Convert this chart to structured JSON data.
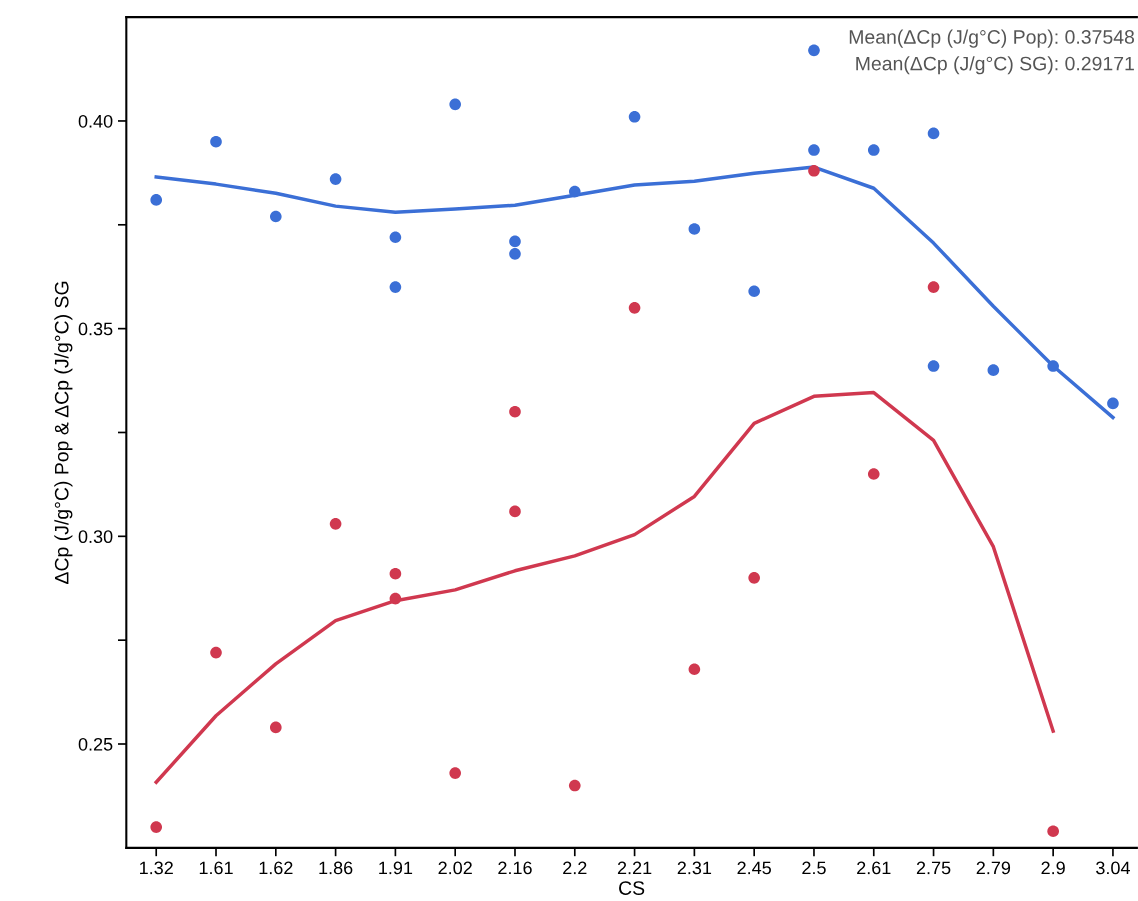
{
  "chart_data": {
    "type": "scatter",
    "categories": [
      "1.32",
      "1.61",
      "1.62",
      "1.86",
      "1.91",
      "2.02",
      "2.16",
      "2.2",
      "2.21",
      "2.31",
      "2.45",
      "2.5",
      "2.61",
      "2.75",
      "2.79",
      "2.9",
      "3.04"
    ],
    "xlabel": "CS",
    "ylabel": "ΔCp (J/g°C) Pop & ΔCp (J/g°C) SG",
    "ylim": [
      0.225,
      0.425
    ],
    "yticks": [
      {
        "value": 0.25,
        "label": "0.25"
      },
      {
        "value": 0.275,
        "label": null
      },
      {
        "value": 0.3,
        "label": "0.30"
      },
      {
        "value": 0.325,
        "label": null
      },
      {
        "value": 0.35,
        "label": "0.35"
      },
      {
        "value": 0.375,
        "label": null
      },
      {
        "value": 0.4,
        "label": "0.40"
      }
    ],
    "grid": false,
    "annotations": [
      "Mean(ΔCp (J/g°C) Pop): 0.37548",
      "Mean(ΔCp (J/g°C) SG): 0.29171"
    ],
    "series": [
      {
        "marker": "circle",
        "color": "#3b6fd6",
        "x": [
          "1.32",
          "1.61",
          "1.62",
          "1.86",
          "1.91",
          "1.91",
          "2.02",
          "2.16",
          "2.16",
          "2.2",
          "2.21",
          "2.31",
          "2.45",
          "2.5",
          "2.5",
          "2.61",
          "2.75",
          "2.75",
          "2.79",
          "2.9",
          "3.04"
        ],
        "values": [
          0.381,
          0.395,
          0.377,
          0.386,
          0.372,
          0.36,
          0.404,
          0.371,
          0.368,
          0.383,
          0.401,
          0.374,
          0.359,
          0.417,
          0.393,
          0.393,
          0.397,
          0.341,
          0.34,
          0.341,
          0.332
        ]
      },
      {
        "marker": "circle",
        "color": "#d0384f",
        "x": [
          "1.32",
          "1.61",
          "1.62",
          "1.86",
          "1.91",
          "1.91",
          "2.02",
          "2.16",
          "2.16",
          "2.2",
          "2.21",
          "2.31",
          "2.45",
          "2.5",
          "2.61",
          "2.75",
          "2.9"
        ],
        "values": [
          0.23,
          0.272,
          0.254,
          0.303,
          0.291,
          0.285,
          0.243,
          0.33,
          0.306,
          0.24,
          0.355,
          0.268,
          0.29,
          0.388,
          0.315,
          0.36,
          0.229
        ]
      },
      {
        "type": "line",
        "color": "#3b6fd6",
        "x": [
          "1.32",
          "1.61",
          "1.62",
          "1.86",
          "1.91",
          "2.02",
          "2.16",
          "2.2",
          "2.21",
          "2.31",
          "2.45",
          "2.5",
          "2.61",
          "2.75",
          "2.79",
          "2.9",
          "3.04"
        ],
        "values": [
          0.3865,
          0.3848,
          0.3826,
          0.3795,
          0.378,
          0.3788,
          0.3797,
          0.3821,
          0.3846,
          0.3855,
          0.3874,
          0.3889,
          0.3838,
          0.3706,
          0.3554,
          0.341,
          0.3286
        ]
      },
      {
        "type": "line",
        "color": "#d0384f",
        "x": [
          "1.32",
          "1.61",
          "1.62",
          "1.86",
          "1.91",
          "2.02",
          "2.16",
          "2.2",
          "2.21",
          "2.31",
          "2.45",
          "2.5",
          "2.61",
          "2.75",
          "2.79",
          "2.9"
        ],
        "values": [
          0.2408,
          0.2568,
          0.2693,
          0.2797,
          0.2845,
          0.2871,
          0.2917,
          0.2953,
          0.3004,
          0.3096,
          0.3272,
          0.3337,
          0.3346,
          0.3231,
          0.2975,
          0.2531
        ]
      }
    ]
  }
}
